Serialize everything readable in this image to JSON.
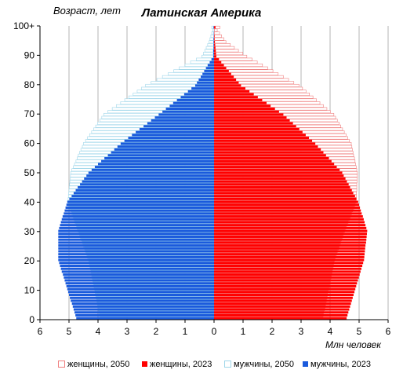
{
  "chart_data": {
    "type": "population-pyramid",
    "title": "Латинская Америка",
    "ylabel": "Возраст, лет",
    "xlabel": "Млн человек",
    "x_ticks": [
      6,
      5,
      4,
      3,
      2,
      1,
      0,
      1,
      2,
      3,
      4,
      5,
      6
    ],
    "y_ticks": [
      "0",
      "10",
      "20",
      "30",
      "40",
      "50",
      "60",
      "70",
      "80",
      "90",
      "100+"
    ],
    "xlim": [
      -6,
      6
    ],
    "ylim": [
      0,
      100
    ],
    "grid": true,
    "legend_position": "bottom",
    "age_step": 1,
    "colors": {
      "female_2023": "#ff0000",
      "male_2023": "#1a5adc",
      "female_2050": "#f08080",
      "male_2050": "#9fd6ea",
      "grid": "#b4b4b4"
    },
    "series": [
      {
        "name": "женщины, 2050",
        "values": [
          3.74,
          3.76,
          3.78,
          3.81,
          3.83,
          3.85,
          3.87,
          3.89,
          3.91,
          3.93,
          3.95,
          3.97,
          3.99,
          4.01,
          4.03,
          4.05,
          4.07,
          4.09,
          4.11,
          4.13,
          4.15,
          4.18,
          4.22,
          4.25,
          4.29,
          4.32,
          4.36,
          4.39,
          4.43,
          4.46,
          4.5,
          4.54,
          4.58,
          4.62,
          4.66,
          4.7,
          4.74,
          4.78,
          4.82,
          4.86,
          4.9,
          4.9,
          4.91,
          4.91,
          4.92,
          4.92,
          4.92,
          4.93,
          4.93,
          4.94,
          4.94,
          4.92,
          4.9,
          4.88,
          4.86,
          4.84,
          4.81,
          4.79,
          4.77,
          4.75,
          4.73,
          4.67,
          4.61,
          4.55,
          4.49,
          4.43,
          4.37,
          4.31,
          4.25,
          4.19,
          4.13,
          4.01,
          3.89,
          3.77,
          3.65,
          3.53,
          3.41,
          3.29,
          3.17,
          3.05,
          2.93,
          2.75,
          2.57,
          2.39,
          2.21,
          2.03,
          1.85,
          1.67,
          1.49,
          1.31,
          1.13,
          0.99,
          0.84,
          0.7,
          0.56,
          0.41,
          0.34,
          0.26,
          0.19,
          0.11,
          0.2
        ]
      },
      {
        "name": "женщины, 2023",
        "values": [
          4.57,
          4.6,
          4.63,
          4.66,
          4.69,
          4.72,
          4.75,
          4.78,
          4.81,
          4.84,
          4.87,
          4.9,
          4.93,
          4.96,
          4.99,
          5.02,
          5.05,
          5.08,
          5.11,
          5.14,
          5.17,
          5.18,
          5.19,
          5.2,
          5.21,
          5.22,
          5.24,
          5.25,
          5.26,
          5.27,
          5.28,
          5.25,
          5.22,
          5.19,
          5.16,
          5.13,
          5.09,
          5.06,
          5.03,
          5.0,
          4.97,
          4.91,
          4.86,
          4.8,
          4.75,
          4.69,
          4.64,
          4.58,
          4.53,
          4.47,
          4.42,
          4.33,
          4.23,
          4.14,
          4.05,
          3.96,
          3.86,
          3.77,
          3.68,
          3.58,
          3.49,
          3.38,
          3.27,
          3.16,
          3.05,
          2.94,
          2.83,
          2.72,
          2.61,
          2.5,
          2.39,
          2.24,
          2.1,
          1.95,
          1.81,
          1.66,
          1.51,
          1.37,
          1.22,
          1.08,
          0.93,
          0.85,
          0.76,
          0.68,
          0.59,
          0.51,
          0.42,
          0.34,
          0.25,
          0.17,
          0.08,
          0.07,
          0.06,
          0.05,
          0.04,
          0.03,
          0.02,
          0.02,
          0.01,
          0.01,
          0.05
        ]
      },
      {
        "name": "мужчины, 2050",
        "values": [
          3.92,
          3.94,
          3.96,
          3.98,
          4.0,
          4.02,
          4.04,
          4.06,
          4.08,
          4.1,
          4.12,
          4.14,
          4.16,
          4.18,
          4.2,
          4.22,
          4.24,
          4.26,
          4.28,
          4.3,
          4.32,
          4.36,
          4.39,
          4.43,
          4.46,
          4.5,
          4.54,
          4.57,
          4.61,
          4.64,
          4.68,
          4.72,
          4.75,
          4.79,
          4.82,
          4.86,
          4.9,
          4.93,
          4.97,
          5.0,
          5.04,
          5.03,
          5.02,
          5.01,
          5.0,
          4.99,
          4.98,
          4.97,
          4.96,
          4.95,
          4.94,
          4.9,
          4.85,
          4.81,
          4.76,
          4.72,
          4.68,
          4.63,
          4.59,
          4.54,
          4.5,
          4.43,
          4.36,
          4.29,
          4.22,
          4.15,
          4.08,
          4.01,
          3.94,
          3.87,
          3.8,
          3.66,
          3.51,
          3.37,
          3.22,
          3.08,
          2.94,
          2.79,
          2.65,
          2.5,
          2.36,
          2.17,
          1.97,
          1.78,
          1.58,
          1.39,
          1.2,
          1.0,
          0.81,
          0.61,
          0.42,
          0.37,
          0.32,
          0.27,
          0.22,
          0.17,
          0.14,
          0.11,
          0.08,
          0.05,
          0.08
        ]
      },
      {
        "name": "мужчины, 2023",
        "values": [
          4.75,
          4.78,
          4.81,
          4.84,
          4.87,
          4.9,
          4.94,
          4.97,
          5.0,
          5.03,
          5.06,
          5.09,
          5.12,
          5.15,
          5.18,
          5.21,
          5.25,
          5.28,
          5.31,
          5.34,
          5.37,
          5.37,
          5.37,
          5.37,
          5.37,
          5.37,
          5.37,
          5.37,
          5.37,
          5.37,
          5.37,
          5.34,
          5.31,
          5.28,
          5.25,
          5.22,
          5.18,
          5.15,
          5.12,
          5.09,
          5.06,
          4.99,
          4.91,
          4.84,
          4.77,
          4.7,
          4.62,
          4.55,
          4.48,
          4.4,
          4.33,
          4.22,
          4.11,
          4.0,
          3.89,
          3.78,
          3.66,
          3.55,
          3.44,
          3.33,
          3.22,
          3.09,
          2.96,
          2.83,
          2.7,
          2.57,
          2.43,
          2.3,
          2.17,
          2.04,
          1.91,
          1.78,
          1.66,
          1.53,
          1.41,
          1.28,
          1.15,
          1.03,
          0.9,
          0.78,
          0.65,
          0.59,
          0.53,
          0.46,
          0.4,
          0.34,
          0.28,
          0.22,
          0.15,
          0.09,
          0.03,
          0.03,
          0.03,
          0.02,
          0.02,
          0.02,
          0.02,
          0.01,
          0.01,
          0.0,
          0.02
        ]
      }
    ]
  }
}
